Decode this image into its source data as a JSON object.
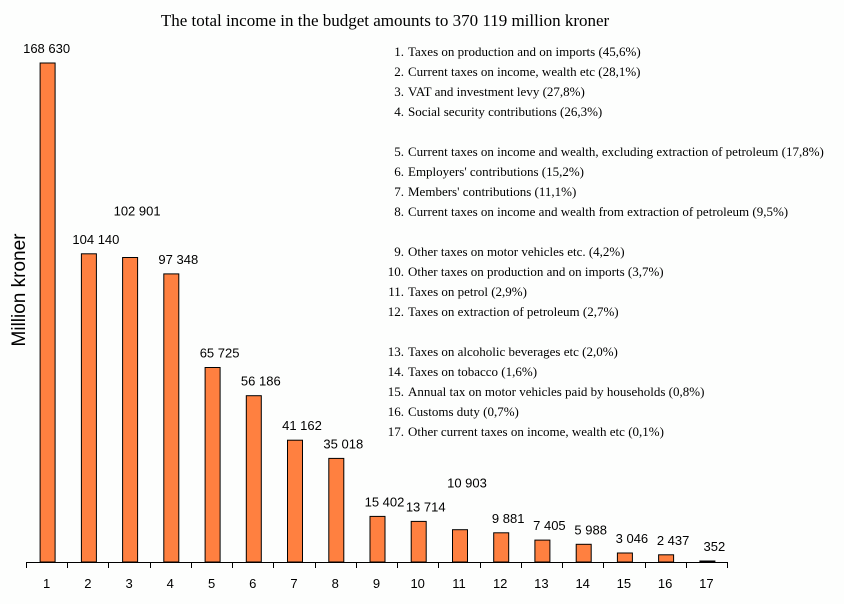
{
  "chart_data": {
    "type": "bar",
    "title": "The total income in the budget amounts to 370 119 million kroner",
    "xlabel": "",
    "ylabel": "Million kroner",
    "ylim": [
      0,
      170000
    ],
    "grid": false,
    "bar_color": "#ff8040",
    "categories": [
      "1",
      "2",
      "3",
      "4",
      "5",
      "6",
      "7",
      "8",
      "9",
      "10",
      "11",
      "12",
      "13",
      "14",
      "15",
      "16",
      "17"
    ],
    "values": [
      168630,
      104140,
      102901,
      97348,
      65725,
      56186,
      41162,
      35018,
      15402,
      13714,
      10903,
      9881,
      7405,
      5988,
      3046,
      2437,
      352
    ],
    "value_labels": [
      "168 630",
      "104 140",
      "102 901",
      "97 348",
      "65 725",
      "56 186",
      "41 162",
      "35 018",
      "15 402",
      "13 714",
      "10 903",
      "9 881",
      "7 405",
      "5 988",
      "3 046",
      "2 437",
      "352"
    ],
    "legend_placement": "top-right",
    "legend_groups": [
      [
        {
          "num": "1.",
          "text": "Taxes on production and on imports (45,6%)"
        },
        {
          "num": "2.",
          "text": "Current taxes on income, wealth etc (28,1%)"
        },
        {
          "num": "3.",
          "text": "VAT and investment levy (27,8%)"
        },
        {
          "num": "4.",
          "text": "Social security contributions (26,3%)"
        }
      ],
      [
        {
          "num": "5.",
          "text": "Current taxes on income and wealth, excluding extraction of petroleum (17,8%)"
        },
        {
          "num": "6.",
          "text": "Employers' contributions (15,2%)"
        },
        {
          "num": "7.",
          "text": "Members' contributions (11,1%)"
        },
        {
          "num": "8.",
          "text": "Current taxes on income and wealth from extraction of petroleum (9,5%)"
        }
      ],
      [
        {
          "num": "9.",
          "text": "Other taxes on motor vehicles etc. (4,2%)"
        },
        {
          "num": "10.",
          "text": "Other taxes on production and on imports (3,7%)"
        },
        {
          "num": "11.",
          "text": "Taxes on petrol (2,9%)"
        },
        {
          "num": "12.",
          "text": "Taxes on extraction of petroleum (2,7%)"
        }
      ],
      [
        {
          "num": "13.",
          "text": "Taxes on alcoholic beverages etc (2,0%)"
        },
        {
          "num": "14.",
          "text": "Taxes on tobacco (1,6%)"
        },
        {
          "num": "15.",
          "text": "Annual tax on motor vehicles paid by households (0,8%)"
        },
        {
          "num": "16.",
          "text": "Customs duty (0,7%)"
        },
        {
          "num": "17.",
          "text": "Other current taxes on income, wealth etc (0,1%)"
        }
      ]
    ]
  }
}
